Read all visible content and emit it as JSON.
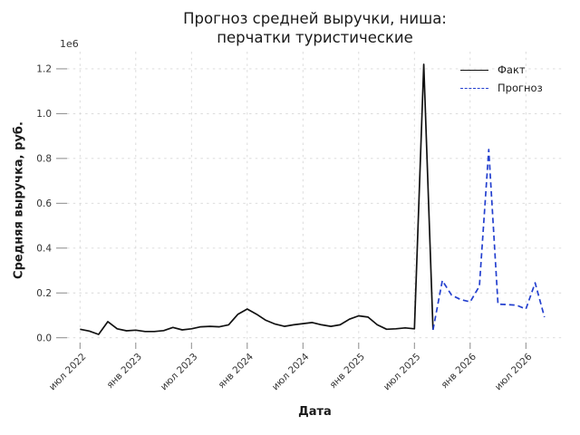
{
  "chart_data": {
    "type": "line",
    "title": "Прогноз средней выручки, ниша:\nперчатки туристические",
    "xlabel": "Дата",
    "ylabel": "Средняя выручка, руб.",
    "y_offset_label": "1e6",
    "units": "1e6 руб.",
    "grid": true,
    "x_tick_labels": [
      "июл 2022",
      "янв 2023",
      "июл 2023",
      "янв 2024",
      "июл 2024",
      "янв 2025",
      "июл 2025",
      "янв 2026",
      "июл 2026"
    ],
    "x_tick_month_index": [
      0,
      6,
      12,
      18,
      24,
      30,
      36,
      42,
      48
    ],
    "y_ticks": [
      0.0,
      0.2,
      0.4,
      0.6,
      0.8,
      1.0,
      1.2
    ],
    "ylim": [
      -0.02,
      1.28
    ],
    "xlim_months": [
      -1.3,
      51.8
    ],
    "legend": {
      "position": "upper right",
      "entries": [
        {
          "label": "Факт",
          "style": "solid",
          "color": "#111111"
        },
        {
          "label": "Прогноз",
          "style": "dashed",
          "color": "#2440cf"
        }
      ]
    },
    "series": [
      {
        "name": "Факт",
        "color": "#111111",
        "style": "solid",
        "start_month": "2022-07",
        "start_month_index": 0,
        "values": [
          0.038,
          0.03,
          0.015,
          0.072,
          0.04,
          0.031,
          0.034,
          0.028,
          0.028,
          0.032,
          0.046,
          0.035,
          0.04,
          0.049,
          0.051,
          0.049,
          0.058,
          0.105,
          0.128,
          0.105,
          0.078,
          0.061,
          0.051,
          0.058,
          0.063,
          0.068,
          0.058,
          0.051,
          0.058,
          0.083,
          0.098,
          0.092,
          0.058,
          0.038,
          0.04,
          0.044,
          0.04,
          1.22,
          0.035
        ]
      },
      {
        "name": "Прогноз",
        "color": "#2440cf",
        "style": "dashed",
        "start_month": "2025-09",
        "start_month_index": 38,
        "values": [
          0.035,
          0.255,
          0.19,
          0.17,
          0.16,
          0.23,
          0.84,
          0.15,
          0.148,
          0.145,
          0.128,
          0.245,
          0.092
        ]
      }
    ]
  }
}
